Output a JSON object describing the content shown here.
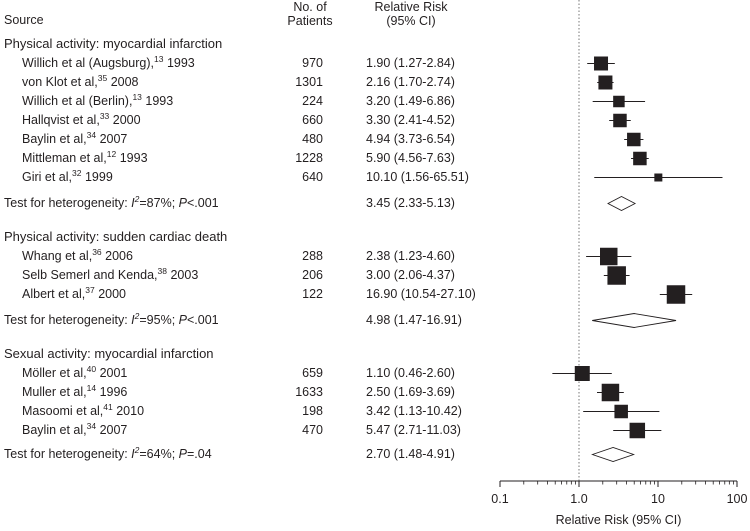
{
  "headers": {
    "source": "Source",
    "patients_line1": "No. of",
    "patients_line2": "Patients",
    "rr_line1": "Relative Risk",
    "rr_line2": "(95% CI)"
  },
  "groups": [
    {
      "title": "Physical activity: myocardial infarction",
      "studies": [
        {
          "author": "Willich et al (Augsburg),",
          "ref": "13",
          "year": "1993",
          "patients": "970",
          "rr_text": "1.90 (1.27-2.84)"
        },
        {
          "author": "von Klot et al,",
          "ref": "35",
          "year": "2008",
          "patients": "1301",
          "rr_text": "2.16 (1.70-2.74)"
        },
        {
          "author": "Willich et al (Berlin),",
          "ref": "13",
          "year": "1993",
          "patients": "224",
          "rr_text": "3.20 (1.49-6.86)"
        },
        {
          "author": "Hallqvist et al,",
          "ref": "33",
          "year": "2000",
          "patients": "660",
          "rr_text": "3.30 (2.41-4.52)"
        },
        {
          "author": "Baylin et al,",
          "ref": "34",
          "year": "2007",
          "patients": "480",
          "rr_text": "4.94 (3.73-6.54)"
        },
        {
          "author": "Mittleman et al,",
          "ref": "12",
          "year": "1993",
          "patients": "1228",
          "rr_text": "5.90 (4.56-7.63)"
        },
        {
          "author": "Giri et al,",
          "ref": "32",
          "year": "1999",
          "patients": "640",
          "rr_text": "10.10 (1.56-65.51)"
        }
      ],
      "het_prefix": "Test for heterogeneity: ",
      "het_i2": "=87%; ",
      "het_p": "<.001",
      "pooled_text": "3.45 (2.33-5.13)"
    },
    {
      "title": "Physical activity: sudden cardiac death",
      "studies": [
        {
          "author": "Whang et al,",
          "ref": "36",
          "year": "2006",
          "patients": "288",
          "rr_text": "2.38 (1.23-4.60)"
        },
        {
          "author": "Selb Semerl and Kenda,",
          "ref": "38",
          "year": "2003",
          "patients": "206",
          "rr_text": "3.00 (2.06-4.37)"
        },
        {
          "author": "Albert et al,",
          "ref": "37",
          "year": "2000",
          "patients": "122",
          "rr_text": "16.90 (10.54-27.10)"
        }
      ],
      "het_prefix": "Test for heterogeneity: ",
      "het_i2": "=95%; ",
      "het_p": "<.001",
      "pooled_text": "4.98 (1.47-16.91)"
    },
    {
      "title": "Sexual activity: myocardial infarction",
      "studies": [
        {
          "author": "Möller et al,",
          "ref": "40",
          "year": "2001",
          "patients": "659",
          "rr_text": "1.10 (0.46-2.60)"
        },
        {
          "author": "Muller et al,",
          "ref": "14",
          "year": "1996",
          "patients": "1633",
          "rr_text": "2.50 (1.69-3.69)"
        },
        {
          "author": "Masoomi et al,",
          "ref": "41",
          "year": "2010",
          "patients": "198",
          "rr_text": "3.42 (1.13-10.42)"
        },
        {
          "author": "Baylin et al,",
          "ref": "34",
          "year": "2007",
          "patients": "470",
          "rr_text": "5.47 (2.71-11.03)"
        }
      ],
      "het_prefix": "Test for heterogeneity: ",
      "het_i2": "=64%; ",
      "het_p": "=.04",
      "pooled_text": "2.70 (1.48-4.91)"
    }
  ],
  "chart_data": {
    "type": "forest",
    "xlabel": "Relative Risk (95% CI)",
    "xscale": "log",
    "xlim": [
      0.1,
      100
    ],
    "xticks": [
      "0.1",
      "1.0",
      "10",
      "100"
    ],
    "xtick_values": [
      0.1,
      1,
      10,
      100
    ],
    "reference_line": 1,
    "colors": {
      "marker": "#231f20",
      "reference": "#777777"
    },
    "groups": [
      {
        "name": "Physical activity: myocardial infarction",
        "studies": [
          {
            "rr": 1.9,
            "lo": 1.27,
            "hi": 2.84,
            "weight": 1.0
          },
          {
            "rr": 2.16,
            "lo": 1.7,
            "hi": 2.74,
            "weight": 1.0
          },
          {
            "rr": 3.2,
            "lo": 1.49,
            "hi": 6.86,
            "weight": 0.75
          },
          {
            "rr": 3.3,
            "lo": 2.41,
            "hi": 4.52,
            "weight": 0.95
          },
          {
            "rr": 4.94,
            "lo": 3.73,
            "hi": 6.54,
            "weight": 0.95
          },
          {
            "rr": 5.9,
            "lo": 4.56,
            "hi": 7.63,
            "weight": 0.95
          },
          {
            "rr": 10.1,
            "lo": 1.56,
            "hi": 65.51,
            "weight": 0.4
          }
        ],
        "pooled": {
          "rr": 3.45,
          "lo": 2.33,
          "hi": 5.13
        }
      },
      {
        "name": "Physical activity: sudden cardiac death",
        "studies": [
          {
            "rr": 2.38,
            "lo": 1.23,
            "hi": 4.6,
            "weight": 1.35
          },
          {
            "rr": 3.0,
            "lo": 2.06,
            "hi": 4.37,
            "weight": 1.45
          },
          {
            "rr": 16.9,
            "lo": 10.54,
            "hi": 27.1,
            "weight": 1.45
          }
        ],
        "pooled": {
          "rr": 4.98,
          "lo": 1.47,
          "hi": 16.91
        }
      },
      {
        "name": "Sexual activity: myocardial infarction",
        "studies": [
          {
            "rr": 1.1,
            "lo": 0.46,
            "hi": 2.6,
            "weight": 1.1
          },
          {
            "rr": 2.5,
            "lo": 1.69,
            "hi": 3.69,
            "weight": 1.35
          },
          {
            "rr": 3.42,
            "lo": 1.13,
            "hi": 10.42,
            "weight": 0.95
          },
          {
            "rr": 5.47,
            "lo": 2.71,
            "hi": 11.03,
            "weight": 1.15
          }
        ],
        "pooled": {
          "rr": 2.7,
          "lo": 1.48,
          "hi": 4.91
        }
      }
    ]
  }
}
